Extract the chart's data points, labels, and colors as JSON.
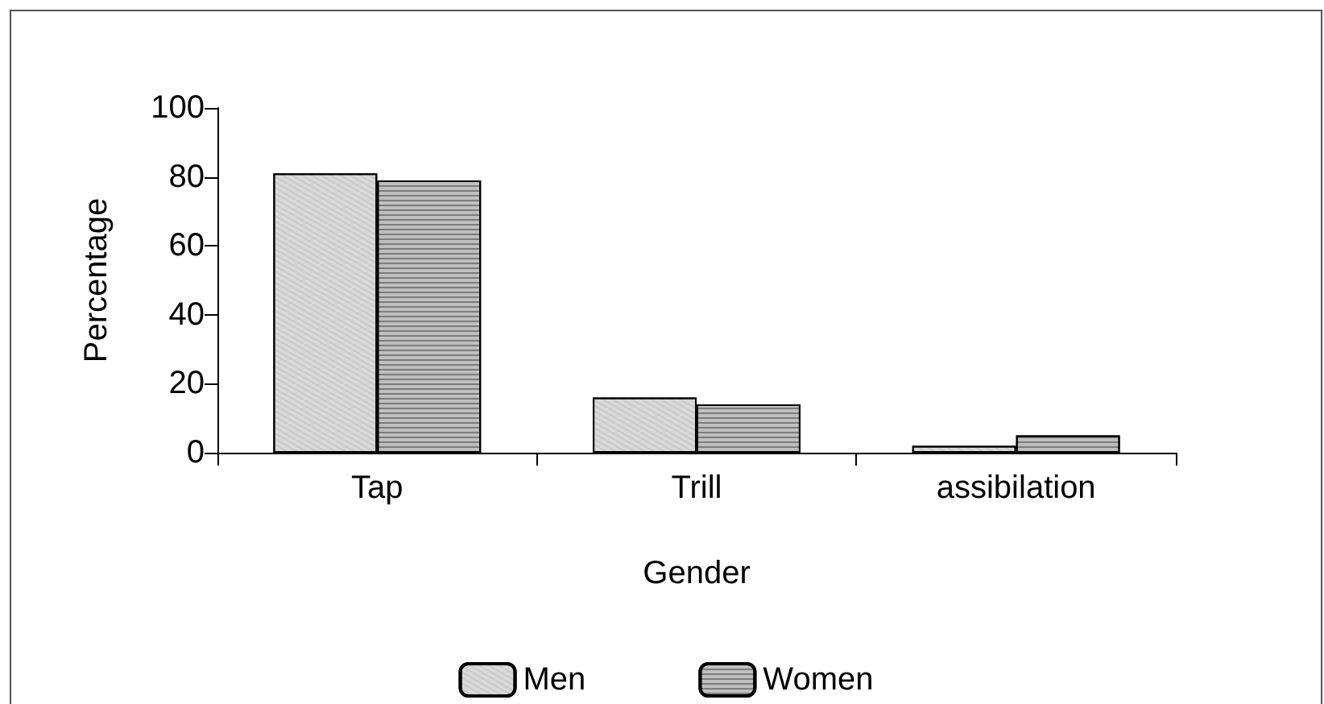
{
  "chart_data": {
    "type": "bar",
    "xlabel": "Gender",
    "ylabel": "Percentage",
    "categories": [
      "Tap",
      "Trill",
      "assibilation"
    ],
    "series": [
      {
        "name": "Men",
        "color": "#d9d9d9",
        "values": [
          81,
          16,
          2
        ]
      },
      {
        "name": "Women",
        "color": "#bfbfbf",
        "values": [
          79,
          14,
          5
        ]
      }
    ],
    "ylim": [
      0,
      100
    ],
    "yticks": [
      0,
      20,
      40,
      60,
      80,
      100
    ],
    "grid": false,
    "legend": "bottom"
  }
}
